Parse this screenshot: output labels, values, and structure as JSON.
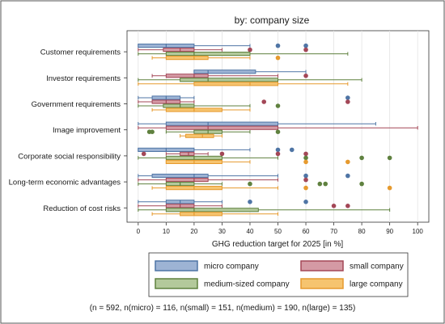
{
  "chart_data": {
    "type": "boxplot",
    "title": "by: company size",
    "xlabel": "GHG reduction target for 2025 [in %]",
    "x_ticks": [
      0,
      10,
      20,
      30,
      40,
      50,
      60,
      70,
      80,
      90,
      100
    ],
    "xlim": [
      -4,
      104
    ],
    "grid": "vertical",
    "legend_position": "bottom",
    "note": "(n = 592, n(micro) = 116, n(small) = 151, n(medium) = 190, n(large) = 135)",
    "categories": [
      "Customer requirements",
      "Investor requirements",
      "Government requirements",
      "Image improvement",
      "Corporate social responsibility",
      "Long-term economic advantages",
      "Reduction of cost risks"
    ],
    "series": [
      {
        "name": "micro company",
        "color": "#4f75a5",
        "fill": "#9db3d4",
        "boxes": [
          {
            "whisker_low": 0,
            "q1": 0,
            "median": 10,
            "q3": 20,
            "whisker_high": 40,
            "outliers": [
              50,
              60
            ]
          },
          {
            "whisker_low": 20,
            "q1": 20,
            "median": 25,
            "q3": 42,
            "whisker_high": 60,
            "outliers": []
          },
          {
            "whisker_low": 0,
            "q1": 5,
            "median": 10,
            "q3": 15,
            "whisker_high": 20,
            "outliers": [
              75
            ]
          },
          {
            "whisker_low": 0,
            "q1": 10,
            "median": 25,
            "q3": 50,
            "whisker_high": 85,
            "outliers": []
          },
          {
            "whisker_low": 0,
            "q1": 0,
            "median": 10,
            "q3": 20,
            "whisker_high": 40,
            "outliers": [
              50,
              55
            ]
          },
          {
            "whisker_low": 0,
            "q1": 5,
            "median": 20,
            "q3": 25,
            "whisker_high": 50,
            "outliers": [
              60,
              75
            ]
          },
          {
            "whisker_low": 0,
            "q1": 10,
            "median": 15,
            "q3": 20,
            "whisker_high": 30,
            "outliers": [
              40,
              60
            ]
          }
        ]
      },
      {
        "name": "small company",
        "color": "#a34757",
        "fill": "#d49aa4",
        "boxes": [
          {
            "whisker_low": 0,
            "q1": 9,
            "median": 15,
            "q3": 20,
            "whisker_high": 30,
            "outliers": [
              40,
              60
            ]
          },
          {
            "whisker_low": 5,
            "q1": 10,
            "median": 20,
            "q3": 25,
            "whisker_high": 50,
            "outliers": [
              60
            ]
          },
          {
            "whisker_low": 0,
            "q1": 5,
            "median": 10,
            "q3": 15,
            "whisker_high": 20,
            "outliers": [
              45,
              75
            ]
          },
          {
            "whisker_low": 0,
            "q1": 10,
            "median": 25,
            "q3": 50,
            "whisker_high": 100,
            "outliers": []
          },
          {
            "whisker_low": 10,
            "q1": 15,
            "median": 18,
            "q3": 20,
            "whisker_high": 25,
            "outliers": [
              2,
              30,
              50,
              60
            ]
          },
          {
            "whisker_low": 0,
            "q1": 10,
            "median": 20,
            "q3": 25,
            "whisker_high": 50,
            "outliers": [
              60
            ]
          },
          {
            "whisker_low": 0,
            "q1": 10,
            "median": 15,
            "q3": 20,
            "whisker_high": 30,
            "outliers": [
              70,
              75
            ]
          }
        ]
      },
      {
        "name": "medium-sized company",
        "color": "#5f813f",
        "fill": "#b3c99b",
        "boxes": [
          {
            "whisker_low": 0,
            "q1": 10,
            "median": 20,
            "q3": 40,
            "whisker_high": 75,
            "outliers": []
          },
          {
            "whisker_low": 0,
            "q1": 15,
            "median": 25,
            "q3": 50,
            "whisker_high": 80,
            "outliers": []
          },
          {
            "whisker_low": 0,
            "q1": 9,
            "median": 15,
            "q3": 20,
            "whisker_high": 40,
            "outliers": [
              50
            ]
          },
          {
            "whisker_low": 10,
            "q1": 20,
            "median": 25,
            "q3": 30,
            "whisker_high": 40,
            "outliers": [
              4,
              5,
              50
            ]
          },
          {
            "whisker_low": 0,
            "q1": 10,
            "median": 20,
            "q3": 30,
            "whisker_high": 50,
            "outliers": [
              60,
              80,
              90
            ]
          },
          {
            "whisker_low": 0,
            "q1": 10,
            "median": 15,
            "q3": 20,
            "whisker_high": 30,
            "outliers": [
              40,
              65,
              67,
              80
            ]
          },
          {
            "whisker_low": 0,
            "q1": 10,
            "median": 20,
            "q3": 43,
            "whisker_high": 90,
            "outliers": []
          }
        ]
      },
      {
        "name": "large company",
        "color": "#e69a2e",
        "fill": "#f6c46f",
        "boxes": [
          {
            "whisker_low": 5,
            "q1": 10,
            "median": 20,
            "q3": 25,
            "whisker_high": 40,
            "outliers": [
              50
            ]
          },
          {
            "whisker_low": 0,
            "q1": 20,
            "median": 40,
            "q3": 50,
            "whisker_high": 75,
            "outliers": []
          },
          {
            "whisker_low": 5,
            "q1": 10,
            "median": 20,
            "q3": 30,
            "whisker_high": 40,
            "outliers": []
          },
          {
            "whisker_low": 15,
            "q1": 17,
            "median": 23,
            "q3": 27,
            "whisker_high": 30,
            "outliers": []
          },
          {
            "whisker_low": 10,
            "q1": 10,
            "median": 20,
            "q3": 30,
            "whisker_high": 40,
            "outliers": [
              60,
              75
            ]
          },
          {
            "whisker_low": 5,
            "q1": 10,
            "median": 20,
            "q3": 30,
            "whisker_high": 50,
            "outliers": [
              60,
              90
            ]
          },
          {
            "whisker_low": 5,
            "q1": 15,
            "median": 20,
            "q3": 30,
            "whisker_high": 50,
            "outliers": []
          }
        ]
      }
    ]
  }
}
